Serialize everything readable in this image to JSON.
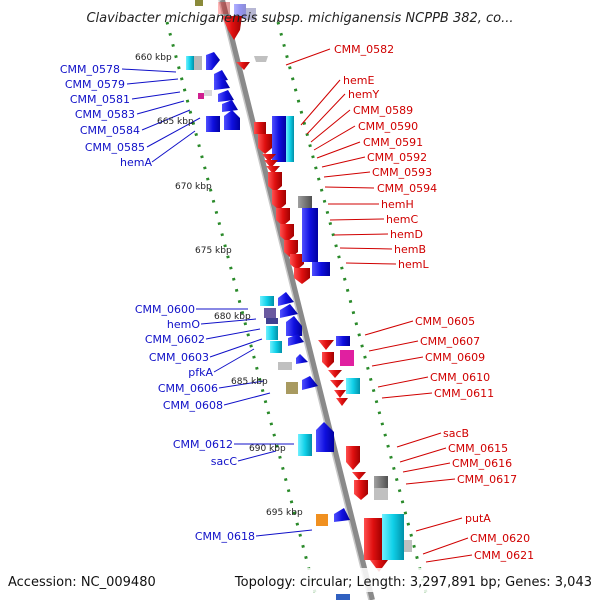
{
  "title": "Clavibacter michiganensis subsp. michiganensis NCPPB 382, co...",
  "footer": {
    "accession": "Accession: NC_009480",
    "topology": "Topology: circular; Length: 3,297,891 bp; Genes: 3,043"
  },
  "kbp_marks": [
    "660 kbp",
    "665 kbp",
    "670 kbp",
    "675 kbp",
    "680 kbp",
    "685 kbp",
    "690 kbp",
    "695 kbp"
  ],
  "labels_left": [
    "CMM_0578",
    "CMM_0579",
    "CMM_0581",
    "CMM_0583",
    "CMM_0584",
    "CMM_0585",
    "hemA",
    "CMM_0600",
    "hemO",
    "CMM_0602",
    "CMM_0603",
    "pfkA",
    "CMM_0606",
    "CMM_0608",
    "CMM_0612",
    "sacC",
    "CMM_0618"
  ],
  "labels_right": [
    "CMM_0582",
    "hemE",
    "hemY",
    "CMM_0589",
    "CMM_0590",
    "CMM_0591",
    "CMM_0592",
    "CMM_0593",
    "CMM_0594",
    "hemH",
    "hemC",
    "hemD",
    "hemB",
    "hemL",
    "CMM_0605",
    "CMM_0607",
    "CMM_0609",
    "CMM_0610",
    "CMM_0611",
    "sacB",
    "CMM_0615",
    "CMM_0616",
    "CMM_0617",
    "putA",
    "CMM_0620",
    "CMM_0621"
  ],
  "colors": {
    "forward_gene": "#1010e0",
    "reverse_gene": "#e01010",
    "backbone": "#8a8a8a",
    "tick": "#2a8a2a",
    "label_left": "#1010c8",
    "label_right": "#d00000"
  }
}
